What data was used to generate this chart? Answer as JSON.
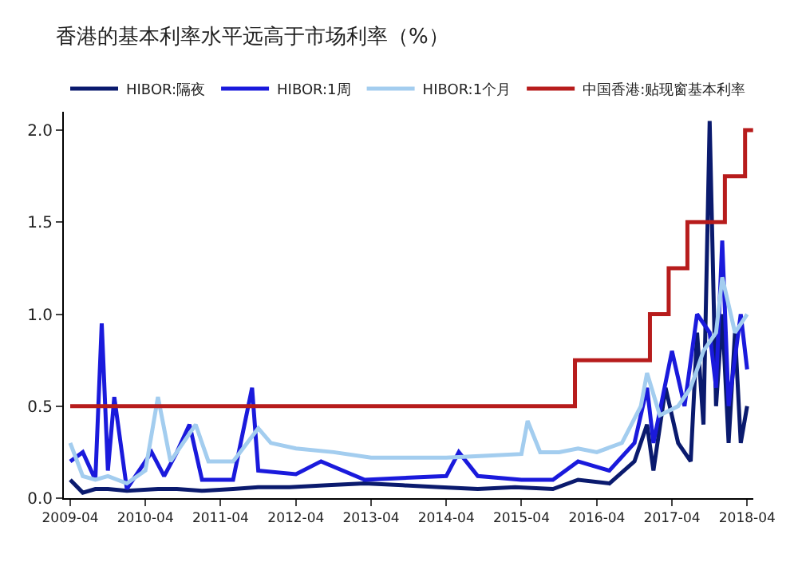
{
  "chart_data": {
    "type": "line",
    "title": "香港的基本利率水平远高于市场利率（%）",
    "legend": "top",
    "grid": false,
    "marker": "none",
    "line_style": "solid",
    "xlim": [
      "2009-03-01",
      "2018-05-01"
    ],
    "xticks": [
      {
        "value": "2009-04-01",
        "label": "2009-04"
      },
      {
        "value": "2010-04-01",
        "label": "2010-04"
      },
      {
        "value": "2011-04-01",
        "label": "2011-04"
      },
      {
        "value": "2012-04-01",
        "label": "2012-04"
      },
      {
        "value": "2013-04-01",
        "label": "2013-04"
      },
      {
        "value": "2014-04-01",
        "label": "2014-04"
      },
      {
        "value": "2015-04-01",
        "label": "2015-04"
      },
      {
        "value": "2016-04-01",
        "label": "2016-04"
      },
      {
        "value": "2017-04-01",
        "label": "2017-04"
      },
      {
        "value": "2018-04-01",
        "label": "2018-04"
      }
    ],
    "ylim": [
      0,
      2.1
    ],
    "yticks": [
      {
        "value": 0,
        "label": "0.0"
      },
      {
        "value": 0.5,
        "label": "0.5"
      },
      {
        "value": 1,
        "label": "1.0"
      },
      {
        "value": 1.5,
        "label": "1.5"
      },
      {
        "value": 2,
        "label": "2.0"
      }
    ],
    "series": [
      {
        "name": "HIBOR:隔夜",
        "color": "#0a1a6e",
        "x": [
          "2009-04-01",
          "2009-06-01",
          "2009-08-01",
          "2009-10-01",
          "2010-01-01",
          "2010-06-01",
          "2010-09-01",
          "2011-01-01",
          "2011-06-01",
          "2011-10-01",
          "2012-03-01",
          "2012-09-01",
          "2013-03-01",
          "2013-09-01",
          "2014-03-01",
          "2014-09-01",
          "2015-03-01",
          "2015-09-01",
          "2016-01-01",
          "2016-06-01",
          "2016-10-01",
          "2016-12-01",
          "2017-01-01",
          "2017-03-01",
          "2017-05-01",
          "2017-07-01",
          "2017-08-01",
          "2017-09-01",
          "2017-10-01",
          "2017-11-01",
          "2017-12-01",
          "2018-01-01",
          "2018-02-01",
          "2018-03-01",
          "2018-04-01"
        ],
        "values": [
          0.1,
          0.03,
          0.05,
          0.05,
          0.04,
          0.05,
          0.05,
          0.04,
          0.05,
          0.06,
          0.06,
          0.07,
          0.08,
          0.07,
          0.06,
          0.05,
          0.06,
          0.05,
          0.1,
          0.08,
          0.2,
          0.4,
          0.15,
          0.6,
          0.3,
          0.2,
          0.9,
          0.4,
          2.05,
          0.5,
          1.0,
          0.3,
          0.9,
          0.3,
          0.5
        ]
      },
      {
        "name": "HIBOR:1周",
        "color": "#1a1adc",
        "x": [
          "2009-04-01",
          "2009-06-01",
          "2009-08-01",
          "2009-09-01",
          "2009-10-01",
          "2009-11-01",
          "2010-01-01",
          "2010-05-01",
          "2010-07-01",
          "2010-09-01",
          "2010-11-01",
          "2011-01-01",
          "2011-06-01",
          "2011-09-01",
          "2011-10-01",
          "2012-04-01",
          "2012-08-01",
          "2013-03-01",
          "2013-09-01",
          "2014-04-01",
          "2014-06-01",
          "2014-09-01",
          "2015-04-01",
          "2015-09-01",
          "2016-01-01",
          "2016-06-01",
          "2016-10-01",
          "2016-12-01",
          "2017-01-01",
          "2017-04-01",
          "2017-06-01",
          "2017-08-01",
          "2017-10-01",
          "2017-11-01",
          "2017-12-01",
          "2018-01-01",
          "2018-03-01",
          "2018-04-01"
        ],
        "values": [
          0.2,
          0.25,
          0.1,
          0.95,
          0.15,
          0.55,
          0.05,
          0.25,
          0.12,
          0.25,
          0.4,
          0.1,
          0.1,
          0.6,
          0.15,
          0.13,
          0.2,
          0.1,
          0.11,
          0.12,
          0.25,
          0.12,
          0.1,
          0.1,
          0.2,
          0.15,
          0.3,
          0.6,
          0.3,
          0.8,
          0.5,
          1.0,
          0.9,
          0.6,
          1.4,
          0.5,
          1.0,
          0.7
        ]
      },
      {
        "name": "HIBOR:1个月",
        "color": "#a3cdef",
        "x": [
          "2009-04-01",
          "2009-06-01",
          "2009-08-01",
          "2009-10-01",
          "2010-01-01",
          "2010-04-01",
          "2010-06-01",
          "2010-08-01",
          "2010-10-01",
          "2010-12-01",
          "2011-02-01",
          "2011-06-01",
          "2011-10-01",
          "2011-12-01",
          "2012-04-01",
          "2012-10-01",
          "2013-04-01",
          "2013-10-01",
          "2014-04-01",
          "2014-10-01",
          "2015-04-01",
          "2015-05-01",
          "2015-07-01",
          "2015-10-01",
          "2016-01-01",
          "2016-04-01",
          "2016-08-01",
          "2016-11-01",
          "2016-12-01",
          "2017-02-01",
          "2017-05-01",
          "2017-07-01",
          "2017-09-01",
          "2017-11-01",
          "2017-12-01",
          "2018-02-01",
          "2018-04-01"
        ],
        "values": [
          0.3,
          0.12,
          0.1,
          0.12,
          0.08,
          0.15,
          0.55,
          0.2,
          0.3,
          0.4,
          0.2,
          0.2,
          0.38,
          0.3,
          0.27,
          0.25,
          0.22,
          0.22,
          0.22,
          0.23,
          0.24,
          0.42,
          0.25,
          0.25,
          0.27,
          0.25,
          0.3,
          0.5,
          0.68,
          0.45,
          0.5,
          0.6,
          0.8,
          0.9,
          1.2,
          0.9,
          1.0
        ]
      },
      {
        "name": "中国香港:贴现窗基本利率",
        "type": "step",
        "color": "#b71c1c",
        "x": [
          "2009-04-01",
          "2015-12-17",
          "2016-12-15",
          "2017-03-16",
          "2017-06-15",
          "2017-12-14",
          "2018-03-22",
          "2018-04-30"
        ],
        "values": [
          0.5,
          0.75,
          1.0,
          1.25,
          1.5,
          1.75,
          2.0,
          2.0
        ]
      }
    ]
  }
}
